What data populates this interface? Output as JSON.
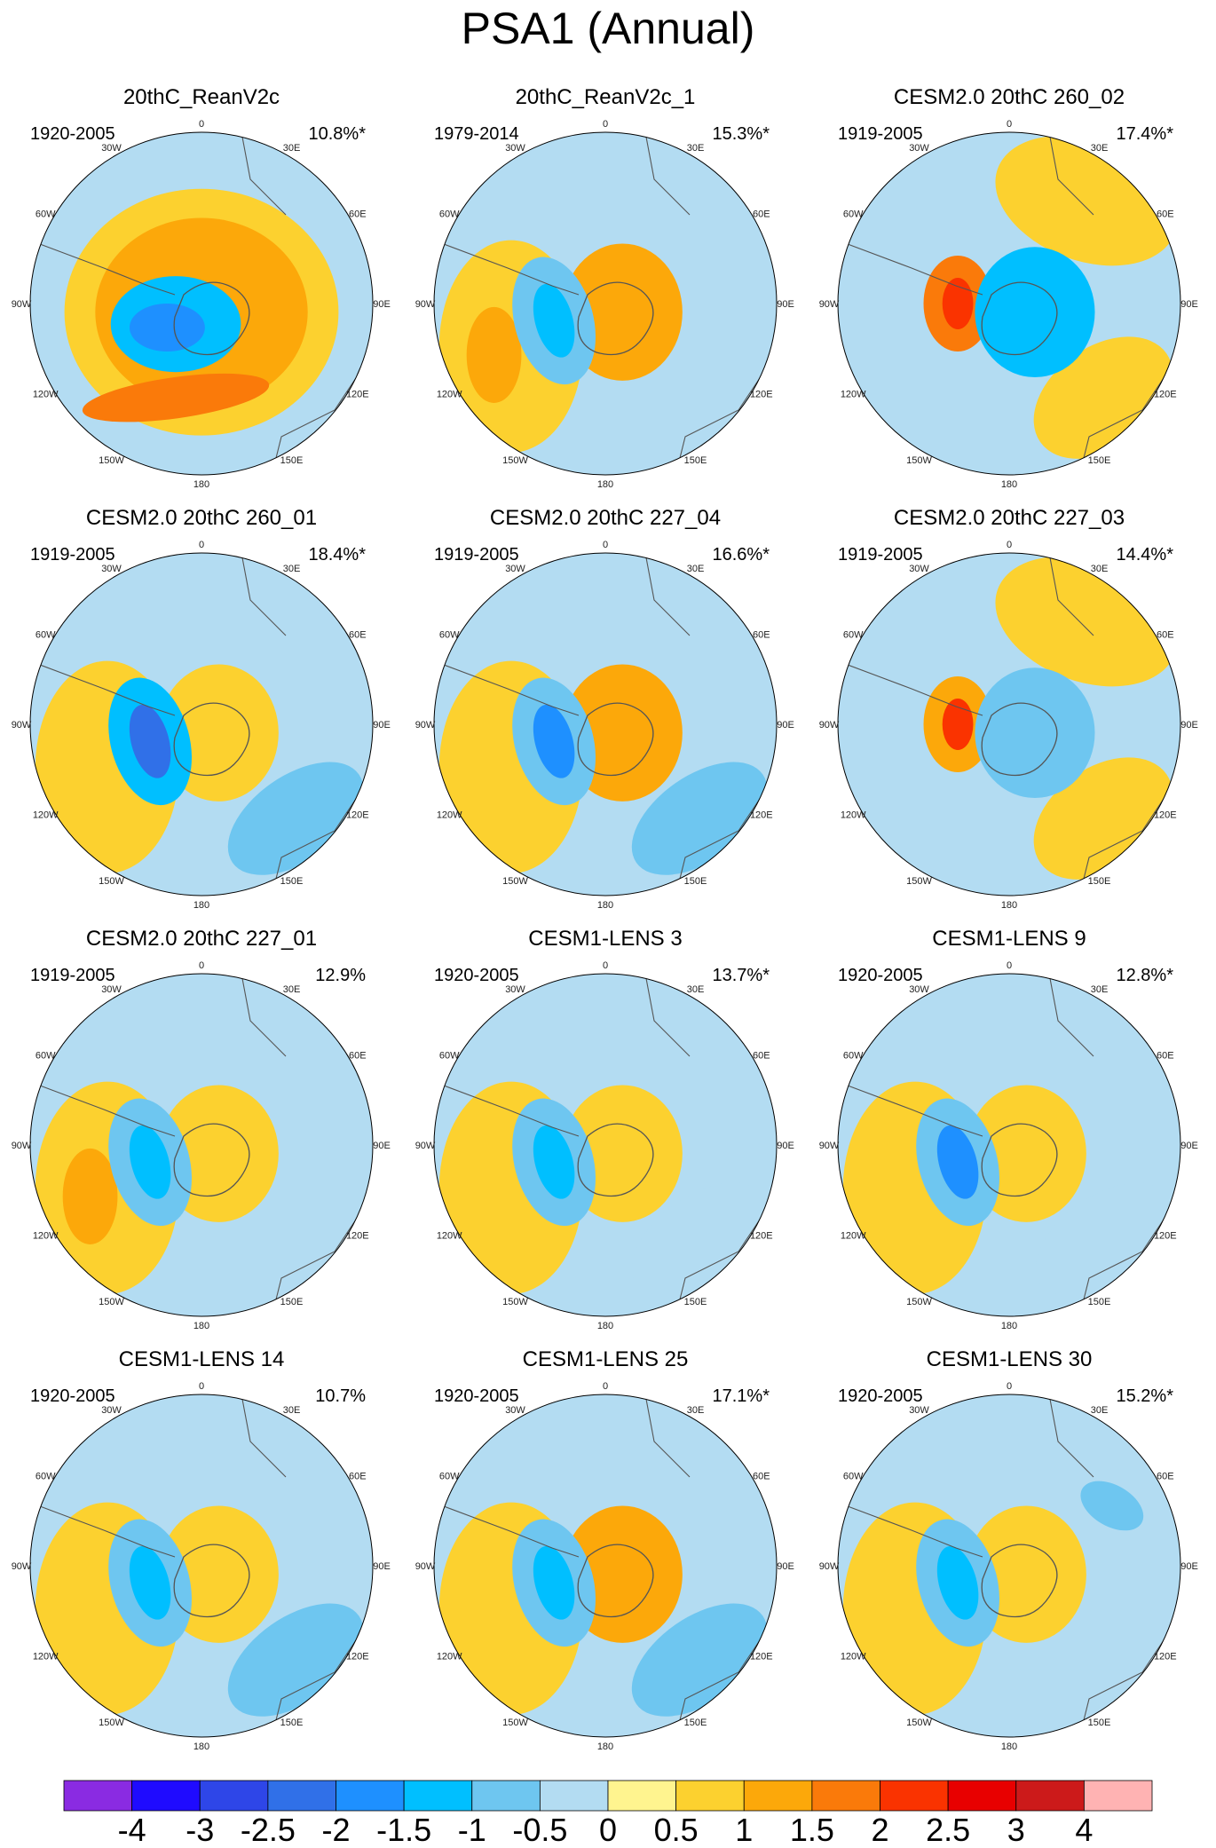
{
  "title": "PSA1 (Annual)",
  "longitude_labels": [
    "0",
    "30E",
    "60E",
    "90E",
    "120E",
    "150E",
    "180",
    "150W",
    "120W",
    "90W",
    "60W",
    "30W"
  ],
  "colors": {
    "background": "#ffffff",
    "coastline": "#555555",
    "ocean_outline": "#000000"
  },
  "panels": [
    {
      "title": "20thC_ReanV2c",
      "period": "1920-2005",
      "variance": "10.8%*",
      "blobs": [
        {
          "type": "ring",
          "value": 0.55
        },
        {
          "type": "ring2",
          "value": 1.2
        },
        {
          "type": "bar",
          "value": 1.6
        },
        {
          "type": "center",
          "value": -1.2
        },
        {
          "type": "center2",
          "value": -1.6
        }
      ]
    },
    {
      "title": "20thC_ReanV2c_1",
      "period": "1979-2014",
      "variance": "15.3%*",
      "blobs": [
        {
          "type": "west",
          "value": 0.7
        },
        {
          "type": "pole",
          "value": 1.0
        },
        {
          "type": "west-inner",
          "value": 1.2
        },
        {
          "type": "wneg",
          "value": -0.8
        },
        {
          "type": "wneg2",
          "value": -1.3
        }
      ]
    },
    {
      "title": "CESM2.0 20thC 260_02",
      "period": "1919-2005",
      "variance": "17.4%*",
      "blobs": [
        {
          "type": "ne",
          "value": 0.6
        },
        {
          "type": "se",
          "value": 0.9
        },
        {
          "type": "pos-dipole",
          "value": 1.6
        },
        {
          "type": "pos-dipole2",
          "value": 2.3
        },
        {
          "type": "pole-neg",
          "value": -1.2
        }
      ]
    },
    {
      "title": "CESM2.0 20thC 260_01",
      "period": "1919-2005",
      "variance": "18.4%*",
      "blobs": [
        {
          "type": "west",
          "value": 0.8
        },
        {
          "type": "pole",
          "value": 0.9
        },
        {
          "type": "wneg",
          "value": -1.1
        },
        {
          "type": "wneg2",
          "value": -2.2
        },
        {
          "type": "se-neg",
          "value": -0.7
        }
      ]
    },
    {
      "title": "CESM2.0 20thC 227_04",
      "period": "1919-2005",
      "variance": "16.6%*",
      "blobs": [
        {
          "type": "west",
          "value": 0.8
        },
        {
          "type": "pole",
          "value": 1.2
        },
        {
          "type": "wneg",
          "value": -1.0
        },
        {
          "type": "wneg2",
          "value": -1.8
        },
        {
          "type": "se-neg",
          "value": -0.6
        }
      ]
    },
    {
      "title": "CESM2.0 20thC 227_03",
      "period": "1919-2005",
      "variance": "14.4%*",
      "blobs": [
        {
          "type": "ne",
          "value": 0.6
        },
        {
          "type": "se",
          "value": 0.9
        },
        {
          "type": "pos-dipole",
          "value": 1.4
        },
        {
          "type": "pos-dipole2",
          "value": 2.0
        },
        {
          "type": "pole-neg",
          "value": -0.9
        }
      ]
    },
    {
      "title": "CESM2.0 20thC 227_01",
      "period": "1919-2005",
      "variance": "12.9%",
      "blobs": [
        {
          "type": "west",
          "value": 0.8
        },
        {
          "type": "pole",
          "value": 0.9
        },
        {
          "type": "west-inner",
          "value": 1.2
        },
        {
          "type": "wneg",
          "value": -0.9
        },
        {
          "type": "wneg2",
          "value": -1.4
        }
      ]
    },
    {
      "title": "CESM1-LENS 3",
      "period": "1920-2005",
      "variance": "13.7%*",
      "blobs": [
        {
          "type": "west",
          "value": 0.8
        },
        {
          "type": "pole",
          "value": 0.9
        },
        {
          "type": "wneg",
          "value": -0.9
        },
        {
          "type": "wneg2",
          "value": -1.4
        },
        {
          "type": "se-neg",
          "value": -0.4
        }
      ]
    },
    {
      "title": "CESM1-LENS 9",
      "period": "1920-2005",
      "variance": "12.8%*",
      "blobs": [
        {
          "type": "west",
          "value": 0.8
        },
        {
          "type": "pole",
          "value": 0.9
        },
        {
          "type": "wneg",
          "value": -1.0
        },
        {
          "type": "wneg2",
          "value": -1.8
        },
        {
          "type": "se-neg",
          "value": -0.4
        }
      ]
    },
    {
      "title": "CESM1-LENS 14",
      "period": "1920-2005",
      "variance": "10.7%",
      "blobs": [
        {
          "type": "west",
          "value": 0.8
        },
        {
          "type": "pole",
          "value": 0.9
        },
        {
          "type": "wneg",
          "value": -0.9
        },
        {
          "type": "wneg2",
          "value": -1.3
        },
        {
          "type": "se-neg",
          "value": -0.6
        }
      ]
    },
    {
      "title": "CESM1-LENS 25",
      "period": "1920-2005",
      "variance": "17.1%*",
      "blobs": [
        {
          "type": "west",
          "value": 0.8
        },
        {
          "type": "pole",
          "value": 1.1
        },
        {
          "type": "wneg",
          "value": -0.9
        },
        {
          "type": "wneg2",
          "value": -1.4
        },
        {
          "type": "se-neg",
          "value": -0.6
        }
      ]
    },
    {
      "title": "CESM1-LENS 30",
      "period": "1920-2005",
      "variance": "15.2%*",
      "blobs": [
        {
          "type": "west",
          "value": 0.8
        },
        {
          "type": "pole",
          "value": 0.9
        },
        {
          "type": "wneg",
          "value": -0.9
        },
        {
          "type": "wneg2",
          "value": -1.4
        },
        {
          "type": "ne-neg",
          "value": -0.6
        }
      ]
    }
  ],
  "colorbar": {
    "labels": [
      "-4",
      "-3",
      "-2.5",
      "-2",
      "-1.5",
      "-1",
      "-0.5",
      "0",
      "0.5",
      "1",
      "1.5",
      "2",
      "2.5",
      "3",
      "4"
    ],
    "colors": [
      "#8a2be2",
      "#1f0bff",
      "#2e46e8",
      "#3070e8",
      "#1e90ff",
      "#00bfff",
      "#6ec6f0",
      "#b3dcf2",
      "#fff48f",
      "#fcd12f",
      "#fca80a",
      "#fa7a0a",
      "#fa3300",
      "#e80000",
      "#cc1a1a",
      "#ffb3b3"
    ]
  }
}
